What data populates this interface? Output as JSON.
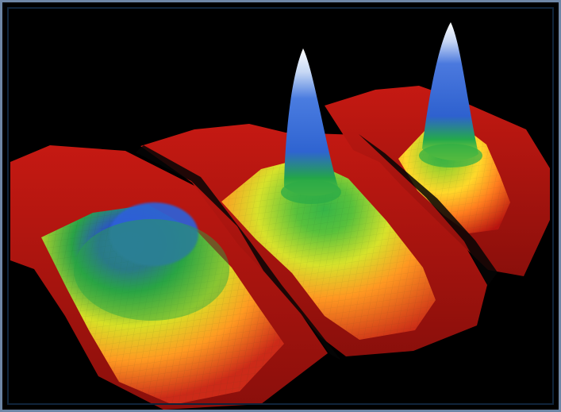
{
  "image": {
    "subject": "three-3d-density-surface-plots",
    "colors": {
      "background": "#000000",
      "frame": "#6e86a6",
      "low": "#b71712",
      "mid_low": "#ff8a1f",
      "mid": "#e6e42a",
      "mid_high": "#22b33a",
      "high": "#2a63d5",
      "peak": "#f5f5f5"
    }
  }
}
